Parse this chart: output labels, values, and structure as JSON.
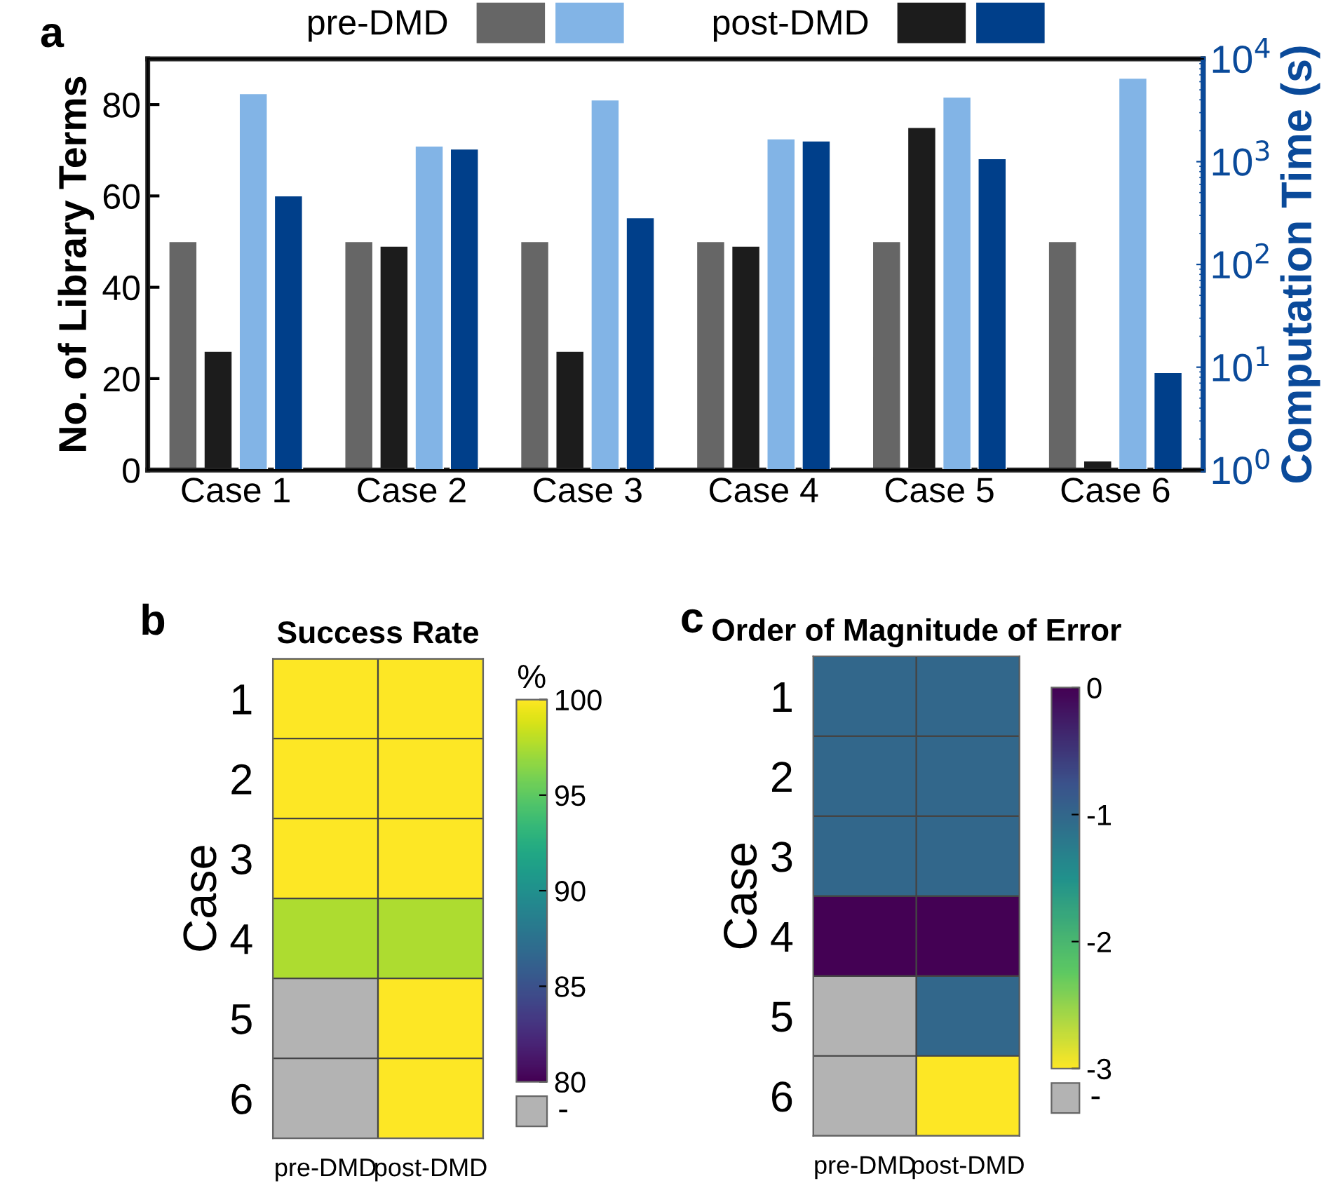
{
  "chart_data": [
    {
      "type": "bar",
      "categories": [
        "Case 1",
        "Case 2",
        "Case 3",
        "Case 4",
        "Case 5",
        "Case 6"
      ],
      "ylabel": "No. of Library Terms",
      "y2label": "Computation Time (s)",
      "ylim": [
        0,
        90
      ],
      "yticks": [
        0,
        20,
        40,
        60,
        80
      ],
      "y2lim": [
        1,
        10000
      ],
      "y2ticks": [
        {
          "value": 1,
          "label": "10$^{0}$"
        },
        {
          "value": 10,
          "label": "10$^{1}$"
        },
        {
          "value": 100,
          "label": "10$^{2}$"
        },
        {
          "value": 1000,
          "label": "10$^{3}$"
        },
        {
          "value": 10000,
          "label": "10$^{4}$"
        }
      ],
      "log": "y2",
      "legend": "top",
      "grid": false,
      "annotations": [
        "a"
      ],
      "series": [
        {
          "name": "pre-DMD",
          "color": "#666666",
          "values": [
            50,
            50,
            50,
            50,
            50,
            50
          ]
        },
        {
          "name": "post-DMD",
          "color": "#1c1c1c",
          "values": [
            26,
            49,
            26,
            49,
            75,
            2
          ]
        },
        {
          "color": "#82b4e6",
          "axis": "y2",
          "values": [
            4600,
            1420,
            4000,
            1670,
            4250,
            6500
          ]
        },
        {
          "color": "#003f8a",
          "axis": "y2",
          "values": [
            465,
            1330,
            285,
            1590,
            1070,
            8.9
          ]
        }
      ]
    },
    {
      "type": "heatmap",
      "title": "Success Rate",
      "ylabel": "Case",
      "clabel": "%",
      "categories": [
        "pre-DMD",
        "post-DMD"
      ],
      "y_categories": [
        "1",
        "2",
        "3",
        "4",
        "5",
        "6"
      ],
      "clim": [
        80,
        100
      ],
      "cticks": [
        80,
        85,
        90,
        95,
        100
      ],
      "annotations": [
        "b",
        "-"
      ],
      "cells": [
        [
          100,
          100
        ],
        [
          100,
          100
        ],
        [
          100,
          100
        ],
        [
          97.5,
          97.5
        ],
        [
          null,
          100
        ],
        [
          null,
          100
        ]
      ]
    },
    {
      "type": "heatmap",
      "title": "Order of Magnitude of Error",
      "ylabel": "Case",
      "categories": [
        "pre-DMD",
        "post-DMD"
      ],
      "y_categories": [
        "1",
        "2",
        "3",
        "4",
        "5",
        "6"
      ],
      "clim": [
        -3,
        0
      ],
      "cticks": [
        -3,
        -2,
        -1,
        0
      ],
      "colors": [
        "#fde725",
        "#5ec962",
        "#21918c",
        "#3b528b",
        "#440154"
      ],
      "annotations": [
        "c",
        "-"
      ],
      "cells": [
        [
          -1,
          -1
        ],
        [
          -1,
          -1
        ],
        [
          -1,
          -1
        ],
        [
          0,
          0
        ],
        [
          null,
          -1
        ],
        [
          null,
          -3
        ]
      ]
    }
  ]
}
